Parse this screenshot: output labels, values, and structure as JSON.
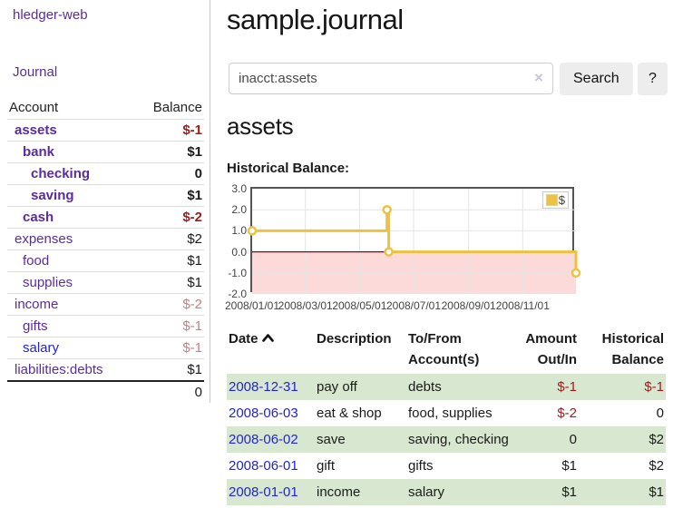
{
  "colors": {
    "accent_purple": "#5b2c9f",
    "link_blue": "#2424d0",
    "negative_strong_red": "#9c1c1c",
    "negative_faded_red": "#c08383",
    "row_stripe_green": "#d8e8d0",
    "series_yellow": "#edc240",
    "zero_line_red": "#990000",
    "negative_region_pink": "#fcdada",
    "plot_border_gray": "#555555"
  },
  "sidebar": {
    "app_title": "hledger-web",
    "journal_link": "Journal",
    "account_header": "Account",
    "balance_header": "Balance",
    "accounts": [
      {
        "name": "assets",
        "balance": "$-1",
        "level": 1,
        "bold": true,
        "balance_class": "neg-strong",
        "name_class": "purple"
      },
      {
        "name": "bank",
        "balance": "$1",
        "level": 2,
        "bold": true,
        "balance_class": "pos",
        "name_class": "purple"
      },
      {
        "name": "checking",
        "balance": "0",
        "level": 3,
        "bold": true,
        "balance_class": "pos",
        "name_class": "purple"
      },
      {
        "name": "saving",
        "balance": "$1",
        "level": 3,
        "bold": true,
        "balance_class": "pos",
        "name_class": "purple"
      },
      {
        "name": "cash",
        "balance": "$-2",
        "level": 2,
        "bold": true,
        "balance_class": "neg-strong",
        "name_class": "purple"
      },
      {
        "name": "expenses",
        "balance": "$2",
        "level": 1,
        "bold": false,
        "balance_class": "pos",
        "name_class": "purple"
      },
      {
        "name": "food",
        "balance": "$1",
        "level": 2,
        "bold": false,
        "balance_class": "pos",
        "name_class": "purple"
      },
      {
        "name": "supplies",
        "balance": "$1",
        "level": 2,
        "bold": false,
        "balance_class": "pos",
        "name_class": "purple"
      },
      {
        "name": "income",
        "balance": "$-2",
        "level": 1,
        "bold": false,
        "balance_class": "neg-faded",
        "name_class": "purple"
      },
      {
        "name": "gifts",
        "balance": "$-1",
        "level": 2,
        "bold": false,
        "balance_class": "neg-faded",
        "name_class": "purple"
      },
      {
        "name": "salary",
        "balance": "$-1",
        "level": 2,
        "bold": false,
        "balance_class": "neg-faded",
        "name_class": "blue"
      },
      {
        "name": "liabilities:debts",
        "balance": "$1",
        "level": 1,
        "bold": false,
        "balance_class": "pos",
        "name_class": "purple"
      }
    ],
    "total": "0"
  },
  "main": {
    "title": "sample.journal",
    "search": {
      "value": "inacct:assets",
      "clear_icon": "×",
      "search_button": "Search",
      "help_button": "?"
    },
    "account_heading": "assets",
    "chart_title": "Historical Balance:"
  },
  "chart_data": {
    "type": "line",
    "step": true,
    "title": "Historical Balance",
    "legend_label": "$",
    "legend_position": "top-right",
    "grid": true,
    "ylim": [
      -2.0,
      3.0
    ],
    "y_ticks": [
      "3.0",
      "2.0",
      "1.0",
      "0.0",
      "-1.0",
      "-2.0"
    ],
    "x_ticks": [
      {
        "label": "2008/01/01",
        "day": 0
      },
      {
        "label": "2008/03/01",
        "day": 60
      },
      {
        "label": "2008/05/01",
        "day": 121
      },
      {
        "label": "2008/07/01",
        "day": 182
      },
      {
        "label": "2008/09/01",
        "day": 244
      },
      {
        "label": "2008/11/01",
        "day": 305
      }
    ],
    "xlim_days": [
      0,
      365
    ],
    "zero_line": true,
    "negative_region_shaded": true,
    "series": [
      {
        "name": "$",
        "color": "#edc240",
        "points": [
          {
            "date": "2008-01-01",
            "day": 0,
            "value": 1
          },
          {
            "date": "2008-06-01",
            "day": 152,
            "value": 2
          },
          {
            "date": "2008-06-03",
            "day": 154,
            "value": 0
          },
          {
            "date": "2008-12-31",
            "day": 365,
            "value": -1
          }
        ]
      }
    ]
  },
  "register": {
    "headers": {
      "date": "Date",
      "description": "Description",
      "account": "To/From Account(s)",
      "amount": "Amount Out/In",
      "balance": "Historical Balance"
    },
    "sort_icon": "chevron-up",
    "rows": [
      {
        "date": "2008-12-31",
        "description": "pay off",
        "account": "debts",
        "amount": "$-1",
        "balance": "$-1",
        "amount_class": "neg",
        "balance_class": "neg",
        "shaded": true
      },
      {
        "date": "2008-06-03",
        "description": "eat & shop",
        "account": "food, supplies",
        "amount": "$-2",
        "balance": "0",
        "amount_class": "neg",
        "balance_class": "pos",
        "shaded": false
      },
      {
        "date": "2008-06-02",
        "description": "save",
        "account": "saving, checking",
        "amount": "0",
        "balance": "$2",
        "amount_class": "pos",
        "balance_class": "pos",
        "shaded": true
      },
      {
        "date": "2008-06-01",
        "description": "gift",
        "account": "gifts",
        "amount": "$1",
        "balance": "$2",
        "amount_class": "pos",
        "balance_class": "pos",
        "shaded": false
      },
      {
        "date": "2008-01-01",
        "description": "income",
        "account": "salary",
        "amount": "$1",
        "balance": "$1",
        "amount_class": "pos",
        "balance_class": "pos",
        "shaded": true
      }
    ]
  }
}
